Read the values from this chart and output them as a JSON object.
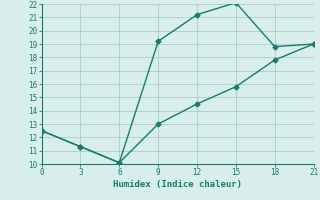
{
  "xlabel": "Humidex (Indice chaleur)",
  "line1_x": [
    0,
    3,
    6,
    9,
    12,
    15,
    18,
    21
  ],
  "line1_y": [
    12.5,
    11.3,
    10.1,
    19.2,
    21.2,
    22.1,
    18.8,
    19.0
  ],
  "line2_x": [
    0,
    3,
    6,
    9,
    12,
    15,
    18,
    21
  ],
  "line2_y": [
    12.5,
    11.3,
    10.1,
    13.0,
    14.5,
    15.8,
    17.8,
    19.0
  ],
  "line_color": "#1a7a6e",
  "bg_color": "#d8eeea",
  "grid_color": "#b0ccc8",
  "xlim": [
    0,
    21
  ],
  "ylim": [
    10,
    22
  ],
  "xticks": [
    0,
    3,
    6,
    9,
    12,
    15,
    18,
    21
  ],
  "yticks": [
    10,
    11,
    12,
    13,
    14,
    15,
    16,
    17,
    18,
    19,
    20,
    21,
    22
  ],
  "marker": "D",
  "markersize": 2.5,
  "linewidth": 1.0
}
